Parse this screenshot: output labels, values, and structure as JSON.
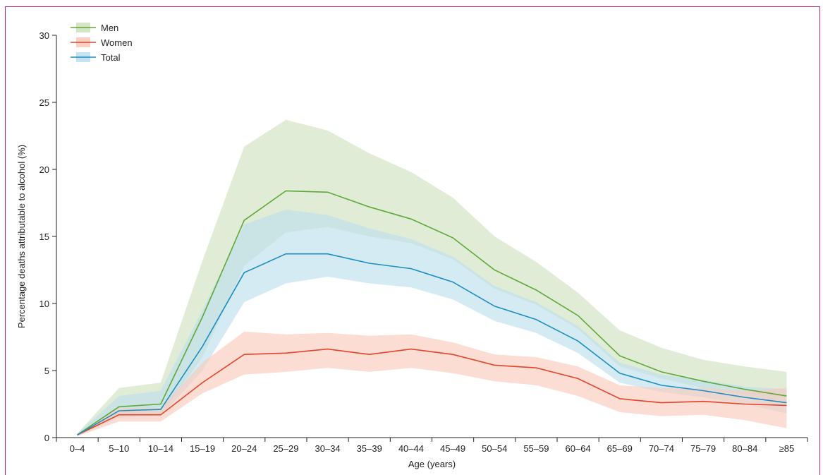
{
  "chart_data": {
    "type": "line",
    "xlabel": "Age (years)",
    "ylabel": "Percentage deaths attributable to alcohol (%)",
    "ylim": [
      0,
      30
    ],
    "yticks": [
      0,
      5,
      10,
      15,
      20,
      25,
      30
    ],
    "categories": [
      "0–4",
      "5–10",
      "10–14",
      "15–19",
      "20–24",
      "25–29",
      "30–34",
      "35–39",
      "40–44",
      "45–49",
      "50–54",
      "55–59",
      "60–64",
      "65–69",
      "70–74",
      "75–79",
      "80–84",
      "≥85"
    ],
    "legend_position": "top-left",
    "series": [
      {
        "name": "Men",
        "line_color": "#5fa83a",
        "band_color": "#cfe2bf",
        "values": [
          0.2,
          2.3,
          2.5,
          9.0,
          16.2,
          18.4,
          18.3,
          17.2,
          16.3,
          14.9,
          12.5,
          11.0,
          9.1,
          6.1,
          4.9,
          4.2,
          3.6,
          3.1
        ],
        "lower": [
          0.1,
          1.6,
          1.7,
          6.0,
          12.8,
          15.3,
          15.7,
          15.0,
          14.5,
          13.3,
          11.1,
          9.9,
          8.1,
          5.3,
          4.4,
          3.7,
          3.2,
          2.5
        ],
        "upper": [
          0.3,
          3.7,
          4.1,
          13.2,
          21.7,
          23.7,
          22.9,
          21.2,
          19.8,
          17.9,
          15.0,
          13.1,
          10.8,
          8.0,
          6.7,
          5.8,
          5.3,
          4.9
        ]
      },
      {
        "name": "Women",
        "line_color": "#e2452b",
        "band_color": "#f9cbbd",
        "values": [
          0.2,
          1.7,
          1.7,
          4.1,
          6.2,
          6.3,
          6.6,
          6.2,
          6.6,
          6.2,
          5.4,
          5.2,
          4.4,
          2.9,
          2.6,
          2.7,
          2.5,
          2.4
        ],
        "lower": [
          0.1,
          1.2,
          1.2,
          3.3,
          4.7,
          4.9,
          5.2,
          4.9,
          5.2,
          4.8,
          4.2,
          3.9,
          3.1,
          1.9,
          1.6,
          1.7,
          1.3,
          0.7
        ],
        "upper": [
          0.3,
          2.2,
          2.2,
          5.6,
          7.9,
          7.7,
          7.8,
          7.6,
          7.7,
          7.1,
          6.2,
          6.0,
          5.3,
          3.9,
          3.7,
          3.7,
          3.5,
          3.7
        ]
      },
      {
        "name": "Total",
        "line_color": "#1c8fc0",
        "band_color": "#bfe0ee",
        "values": [
          0.2,
          2.0,
          2.1,
          6.8,
          12.3,
          13.7,
          13.7,
          13.0,
          12.6,
          11.6,
          9.8,
          8.8,
          7.2,
          4.8,
          3.9,
          3.5,
          3.0,
          2.6
        ],
        "lower": [
          0.1,
          1.5,
          1.6,
          5.0,
          10.1,
          11.5,
          12.0,
          11.5,
          11.2,
          10.3,
          8.7,
          7.8,
          6.3,
          4.1,
          3.4,
          3.0,
          2.5,
          1.8
        ],
        "upper": [
          0.3,
          3.1,
          3.5,
          9.5,
          15.9,
          17.0,
          16.6,
          15.6,
          14.8,
          13.5,
          11.3,
          10.1,
          8.3,
          5.6,
          4.7,
          4.3,
          3.8,
          3.6
        ]
      }
    ]
  }
}
